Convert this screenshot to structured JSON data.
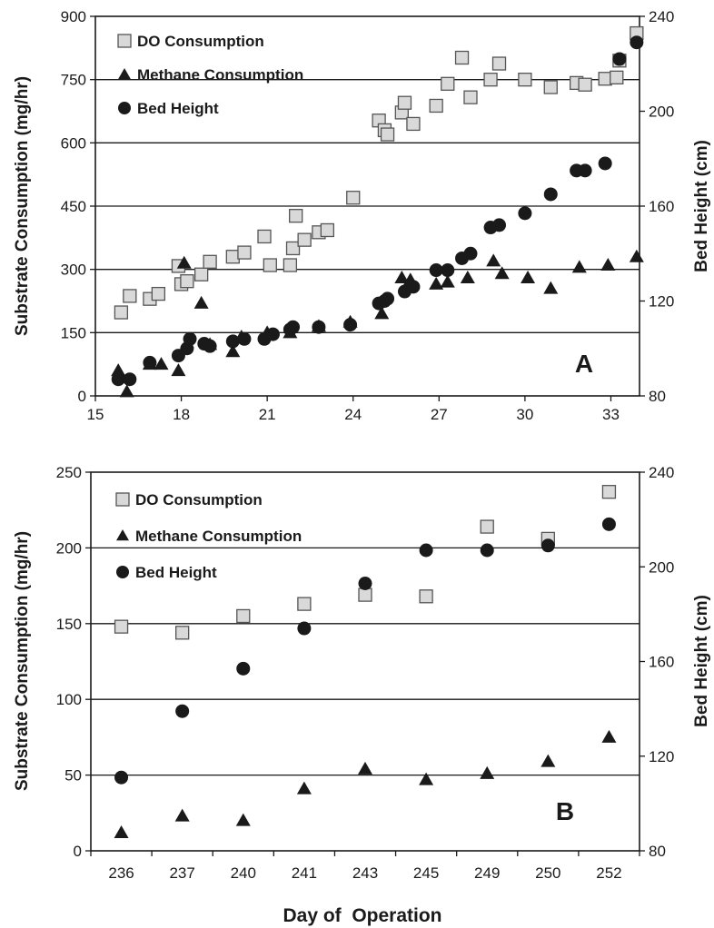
{
  "figure": {
    "xlabel": "Day of  Operation"
  },
  "legend": {
    "do": "DO Consumption",
    "methane": "Methane Consumption",
    "bed": "Bed Height"
  },
  "colors": {
    "do_fill": "#d9d9d9",
    "do_stroke": "#555555",
    "methane": "#1a1a1a",
    "bed": "#1a1a1a",
    "grid": "#1a1a1a"
  },
  "chart_data": [
    {
      "panel": "A",
      "type": "scatter",
      "ylabel": "Substrate Consumption (mg/hr)",
      "y2label": "Bed Height (cm)",
      "xlim": [
        15,
        34
      ],
      "ylim": [
        0,
        900
      ],
      "y2lim": [
        80,
        240
      ],
      "xticks": [
        15,
        18,
        21,
        24,
        27,
        30,
        33
      ],
      "yticks": [
        0,
        150,
        300,
        450,
        600,
        750,
        900
      ],
      "y2ticks": [
        80,
        120,
        160,
        200,
        240
      ],
      "gridlines_y": [
        150,
        300,
        450,
        600,
        750
      ],
      "series": [
        {
          "name": "DO Consumption",
          "marker": "square",
          "axis": "left",
          "points": [
            [
              15.9,
              198
            ],
            [
              16.2,
              237
            ],
            [
              16.9,
              230
            ],
            [
              17.2,
              242
            ],
            [
              17.9,
              308
            ],
            [
              18.0,
              265
            ],
            [
              18.2,
              272
            ],
            [
              18.7,
              288
            ],
            [
              19.0,
              318
            ],
            [
              19.8,
              330
            ],
            [
              20.2,
              340
            ],
            [
              20.9,
              378
            ],
            [
              21.1,
              310
            ],
            [
              21.8,
              310
            ],
            [
              21.9,
              350
            ],
            [
              22.0,
              427
            ],
            [
              22.3,
              370
            ],
            [
              22.8,
              388
            ],
            [
              23.1,
              393
            ],
            [
              24.0,
              470
            ],
            [
              24.9,
              653
            ],
            [
              25.1,
              630
            ],
            [
              25.2,
              620
            ],
            [
              25.7,
              672
            ],
            [
              25.8,
              695
            ],
            [
              26.1,
              645
            ],
            [
              26.9,
              688
            ],
            [
              27.3,
              740
            ],
            [
              27.8,
              802
            ],
            [
              28.1,
              708
            ],
            [
              28.8,
              750
            ],
            [
              29.1,
              788
            ],
            [
              30.0,
              750
            ],
            [
              30.9,
              732
            ],
            [
              31.8,
              742
            ],
            [
              32.1,
              738
            ],
            [
              32.8,
              752
            ],
            [
              33.2,
              755
            ],
            [
              33.3,
              795
            ],
            [
              33.9,
              860
            ]
          ]
        },
        {
          "name": "Methane Consumption",
          "marker": "triangle",
          "axis": "left",
          "points": [
            [
              15.8,
              60
            ],
            [
              16.1,
              10
            ],
            [
              16.9,
              75
            ],
            [
              17.3,
              75
            ],
            [
              17.9,
              60
            ],
            [
              18.1,
              315
            ],
            [
              18.7,
              220
            ],
            [
              19.0,
              122
            ],
            [
              19.8,
              105
            ],
            [
              20.1,
              140
            ],
            [
              21.0,
              150
            ],
            [
              21.8,
              150
            ],
            [
              22.8,
              165
            ],
            [
              23.9,
              175
            ],
            [
              25.0,
              195
            ],
            [
              25.7,
              280
            ],
            [
              26.0,
              275
            ],
            [
              26.9,
              265
            ],
            [
              27.3,
              270
            ],
            [
              28.0,
              280
            ],
            [
              28.9,
              320
            ],
            [
              29.2,
              290
            ],
            [
              30.1,
              280
            ],
            [
              30.9,
              255
            ],
            [
              31.9,
              305
            ],
            [
              32.9,
              310
            ],
            [
              33.9,
              330
            ]
          ]
        },
        {
          "name": "Bed Height",
          "marker": "circle",
          "axis": "right",
          "points": [
            [
              15.8,
              87
            ],
            [
              16.2,
              87
            ],
            [
              16.9,
              94
            ],
            [
              17.9,
              97
            ],
            [
              18.2,
              100
            ],
            [
              18.3,
              104
            ],
            [
              18.8,
              102
            ],
            [
              19.0,
              101
            ],
            [
              19.8,
              103
            ],
            [
              20.2,
              104
            ],
            [
              20.9,
              104
            ],
            [
              21.2,
              106
            ],
            [
              21.8,
              108
            ],
            [
              21.9,
              109
            ],
            [
              22.8,
              109
            ],
            [
              23.9,
              110
            ],
            [
              24.9,
              119
            ],
            [
              25.1,
              120
            ],
            [
              25.2,
              121
            ],
            [
              25.8,
              124
            ],
            [
              26.1,
              126
            ],
            [
              26.9,
              133
            ],
            [
              27.3,
              133
            ],
            [
              27.8,
              138
            ],
            [
              28.1,
              140
            ],
            [
              28.8,
              151
            ],
            [
              29.1,
              152
            ],
            [
              30.0,
              157
            ],
            [
              30.9,
              165
            ],
            [
              31.8,
              175
            ],
            [
              32.1,
              175
            ],
            [
              32.8,
              178
            ],
            [
              33.3,
              222
            ],
            [
              33.9,
              229
            ]
          ]
        }
      ]
    },
    {
      "panel": "B",
      "type": "scatter",
      "ylabel": "Substrate Consumption (mg/hr)",
      "y2label": "Bed Height (cm)",
      "categories": [
        "236",
        "237",
        "240",
        "241",
        "243",
        "245",
        "249",
        "250",
        "252"
      ],
      "ylim": [
        0,
        250
      ],
      "y2lim": [
        80,
        240
      ],
      "yticks": [
        0,
        50,
        100,
        150,
        200,
        250
      ],
      "y2ticks": [
        80,
        120,
        160,
        200,
        240
      ],
      "gridlines_y": [
        50,
        100,
        150,
        200
      ],
      "series": [
        {
          "name": "DO Consumption",
          "marker": "square",
          "axis": "left",
          "values": [
            148,
            144,
            155,
            163,
            169,
            168,
            214,
            206,
            237
          ]
        },
        {
          "name": "Methane Consumption",
          "marker": "triangle",
          "axis": "left",
          "values": [
            12,
            23,
            20,
            41,
            54,
            47,
            51,
            59,
            75
          ]
        },
        {
          "name": "Bed Height",
          "marker": "circle",
          "axis": "right",
          "values": [
            111,
            139,
            157,
            174,
            193,
            207,
            207,
            209,
            218
          ]
        }
      ]
    }
  ]
}
